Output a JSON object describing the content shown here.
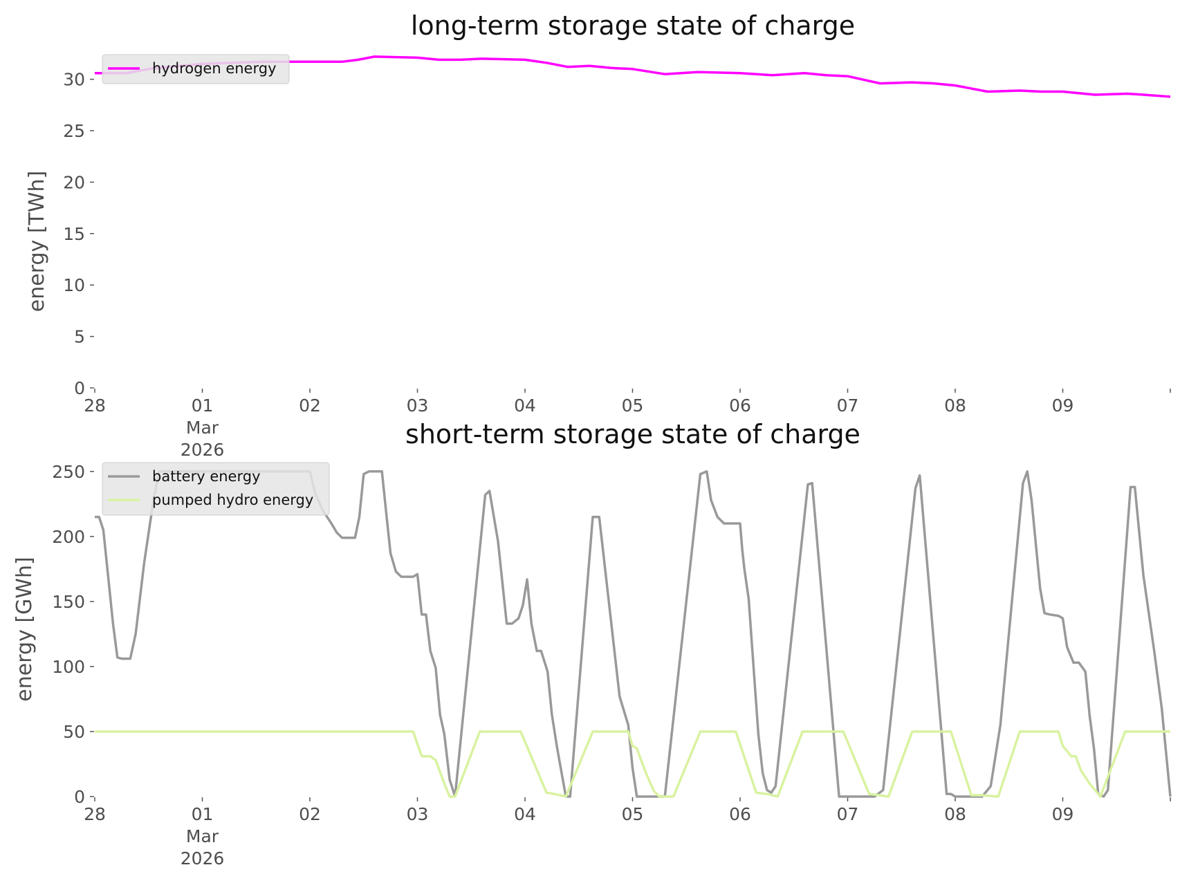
{
  "chart_data": [
    {
      "type": "line",
      "title": "long-term storage state of charge",
      "ylabel": "energy [TWh]",
      "xlabel": "",
      "ylim": [
        0,
        33
      ],
      "xlim": [
        0,
        10
      ],
      "yticks": [
        0,
        5,
        10,
        15,
        20,
        25,
        30
      ],
      "xticks": [
        {
          "pos": 0,
          "labels": [
            "28"
          ]
        },
        {
          "pos": 1,
          "labels": [
            "01",
            "Mar",
            "2026"
          ]
        },
        {
          "pos": 2,
          "labels": [
            "02"
          ]
        },
        {
          "pos": 3,
          "labels": [
            "03"
          ]
        },
        {
          "pos": 4,
          "labels": [
            "04"
          ]
        },
        {
          "pos": 5,
          "labels": [
            "05"
          ]
        },
        {
          "pos": 6,
          "labels": [
            "06"
          ]
        },
        {
          "pos": 7,
          "labels": [
            "07"
          ]
        },
        {
          "pos": 8,
          "labels": [
            "08"
          ]
        },
        {
          "pos": 9,
          "labels": [
            "09"
          ]
        }
      ],
      "legend_position": "top-left",
      "series": [
        {
          "name": "hydrogen energy",
          "color": "#ff00ff",
          "x": [
            0,
            0.3,
            0.5,
            0.7,
            1.0,
            1.3,
            1.6,
            2.0,
            2.3,
            2.45,
            2.6,
            3.0,
            3.2,
            3.4,
            3.6,
            4.0,
            4.2,
            4.4,
            4.6,
            4.8,
            5.0,
            5.3,
            5.6,
            6.0,
            6.3,
            6.6,
            6.8,
            7.0,
            7.3,
            7.6,
            7.8,
            8.0,
            8.3,
            8.6,
            8.8,
            9.0,
            9.3,
            9.6,
            9.75,
            10.0
          ],
          "values": [
            30.6,
            30.6,
            31.0,
            31.2,
            31.5,
            31.6,
            31.7,
            31.7,
            31.7,
            31.9,
            32.2,
            32.1,
            31.9,
            31.9,
            32.0,
            31.9,
            31.6,
            31.2,
            31.3,
            31.1,
            31.0,
            30.5,
            30.7,
            30.6,
            30.4,
            30.6,
            30.4,
            30.3,
            29.6,
            29.7,
            29.6,
            29.4,
            28.8,
            28.9,
            28.8,
            28.8,
            28.5,
            28.6,
            28.5,
            28.3
          ]
        }
      ]
    },
    {
      "type": "line",
      "title": "short-term storage state of charge",
      "ylabel": "energy [GWh]",
      "xlabel": "",
      "ylim": [
        0,
        260
      ],
      "xlim": [
        0,
        10
      ],
      "yticks": [
        0,
        50,
        100,
        150,
        200,
        250
      ],
      "xticks": [
        {
          "pos": 0,
          "labels": [
            "28"
          ]
        },
        {
          "pos": 1,
          "labels": [
            "01",
            "Mar",
            "2026"
          ]
        },
        {
          "pos": 2,
          "labels": [
            "02"
          ]
        },
        {
          "pos": 3,
          "labels": [
            "03"
          ]
        },
        {
          "pos": 4,
          "labels": [
            "04"
          ]
        },
        {
          "pos": 5,
          "labels": [
            "05"
          ]
        },
        {
          "pos": 6,
          "labels": [
            "06"
          ]
        },
        {
          "pos": 7,
          "labels": [
            "07"
          ]
        },
        {
          "pos": 8,
          "labels": [
            "08"
          ]
        },
        {
          "pos": 9,
          "labels": [
            "09"
          ]
        }
      ],
      "legend_position": "top-left",
      "series": [
        {
          "name": "battery energy",
          "color": "#999999",
          "x": [
            0,
            0.04,
            0.08,
            0.13,
            0.17,
            0.21,
            0.25,
            0.33,
            0.38,
            0.46,
            0.55,
            0.6,
            0.75,
            1.0,
            1.25,
            1.5,
            1.75,
            2.0,
            2.05,
            2.12,
            2.2,
            2.25,
            2.3,
            2.38,
            2.42,
            2.46,
            2.5,
            2.55,
            2.6,
            2.67,
            2.71,
            2.75,
            2.8,
            2.85,
            2.92,
            2.96,
            3.0,
            3.04,
            3.08,
            3.12,
            3.17,
            3.21,
            3.25,
            3.3,
            3.35,
            3.63,
            3.67,
            3.75,
            3.83,
            3.88,
            3.94,
            3.98,
            4.02,
            4.06,
            4.11,
            4.15,
            4.21,
            4.25,
            4.3,
            4.38,
            4.42,
            4.63,
            4.69,
            4.88,
            4.96,
            5.0,
            5.04,
            5.1,
            5.3,
            5.63,
            5.69,
            5.73,
            5.79,
            5.85,
            5.92,
            6.0,
            6.02,
            6.04,
            6.08,
            6.17,
            6.21,
            6.25,
            6.29,
            6.33,
            6.63,
            6.67,
            6.92,
            6.95,
            7.0,
            7.25,
            7.33,
            7.63,
            7.67,
            7.92,
            7.96,
            8.0,
            8.04,
            8.25,
            8.33,
            8.42,
            8.63,
            8.67,
            8.71,
            8.79,
            8.83,
            8.88,
            8.96,
            9.0,
            9.04,
            9.1,
            9.15,
            9.21,
            9.25,
            9.29,
            9.33,
            9.38,
            9.42,
            9.63,
            9.67,
            9.75,
            9.85,
            9.92,
            10.0
          ],
          "values": [
            215,
            215,
            205,
            165,
            133,
            107,
            106,
            106,
            125,
            180,
            230,
            250,
            250,
            250,
            250,
            250,
            250,
            250,
            233,
            220,
            210,
            203,
            199,
            199,
            199,
            215,
            248,
            250,
            250,
            250,
            218,
            187,
            173,
            169,
            169,
            169,
            171,
            140,
            140,
            112,
            99,
            63,
            48,
            13,
            0,
            232,
            235,
            196,
            133,
            133,
            137,
            147,
            167,
            133,
            112,
            112,
            96,
            63,
            37,
            0,
            0,
            215,
            215,
            77,
            55,
            22,
            0,
            0,
            0,
            248,
            250,
            228,
            215,
            210,
            210,
            210,
            190,
            175,
            152,
            48,
            18,
            5,
            3,
            8,
            240,
            241,
            0,
            0,
            0,
            0,
            5,
            237,
            247,
            2,
            2,
            0,
            0,
            0,
            8,
            55,
            241,
            250,
            228,
            160,
            141,
            140,
            139,
            137,
            115,
            103,
            103,
            96,
            62,
            37,
            2,
            0,
            5,
            238,
            238,
            170,
            112,
            68,
            0
          ]
        },
        {
          "name": "pumped hydro energy",
          "color": "#d9f2a0",
          "x": [
            0,
            2.96,
            3.04,
            3.12,
            3.17,
            3.25,
            3.3,
            3.35,
            3.58,
            3.96,
            4.2,
            4.27,
            4.38,
            4.63,
            4.96,
            5.0,
            5.04,
            5.08,
            5.13,
            5.2,
            5.25,
            5.38,
            5.63,
            5.96,
            6.15,
            6.25,
            6.35,
            6.58,
            6.96,
            7.2,
            7.3,
            7.38,
            7.6,
            7.96,
            8.15,
            8.25,
            8.4,
            8.6,
            8.96,
            9.0,
            9.08,
            9.12,
            9.17,
            9.25,
            9.35,
            9.58,
            10.0
          ],
          "values": [
            50,
            50,
            31,
            31,
            28,
            10,
            0,
            0,
            50,
            50,
            3,
            2,
            0,
            50,
            50,
            39,
            37,
            28,
            17,
            4,
            0,
            0,
            50,
            50,
            3,
            2,
            0,
            50,
            50,
            2,
            1,
            0,
            50,
            50,
            1,
            1,
            0,
            50,
            50,
            39,
            31,
            31,
            20,
            10,
            0,
            50,
            50
          ]
        }
      ]
    }
  ]
}
